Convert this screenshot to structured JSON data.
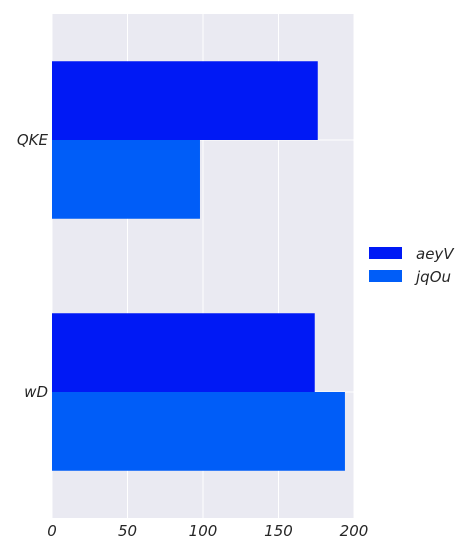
{
  "chart_data": {
    "type": "bar",
    "orientation": "horizontal",
    "categories": [
      "QKE",
      "wD"
    ],
    "series": [
      {
        "name": "aeyV",
        "values": [
          176,
          174
        ],
        "color": "#0019f5"
      },
      {
        "name": "jqOu",
        "values": [
          98,
          194
        ],
        "color": "#005df8"
      }
    ],
    "xlim": [
      0,
      200
    ],
    "xticks": [
      0,
      50,
      100,
      150,
      200
    ],
    "grid": true,
    "legend_placement": "right",
    "background_color": "#eaeaf2"
  }
}
